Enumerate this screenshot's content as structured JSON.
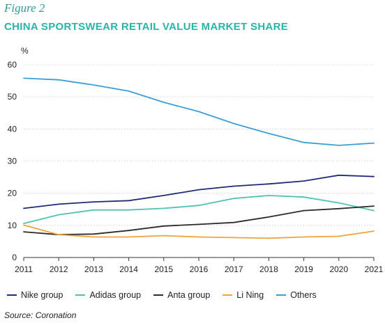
{
  "figure_label": "Figure 2",
  "title": "CHINA SPORTSWEAR RETAIL VALUE MARKET SHARE",
  "source": "Source: Coronation",
  "chart_data": {
    "type": "line",
    "title": "CHINA SPORTSWEAR RETAIL VALUE MARKET SHARE",
    "ylabel": "%",
    "xlabel": "",
    "ylim": [
      0,
      60
    ],
    "yticks": [
      0,
      10,
      20,
      30,
      40,
      50,
      60
    ],
    "x": [
      "2011",
      "2012",
      "2013",
      "2014",
      "2015",
      "2016",
      "2017",
      "2018",
      "2019",
      "2020",
      "2021"
    ],
    "grid": "horizontal",
    "legend_position": "bottom",
    "series": [
      {
        "name": "Nike group",
        "color": "#1f2a78",
        "values": [
          15.3,
          16.6,
          17.3,
          17.7,
          19.3,
          21.1,
          22.2,
          22.9,
          23.8,
          25.6,
          25.2
        ]
      },
      {
        "name": "Adidas group",
        "color": "#4ec3b1",
        "values": [
          10.6,
          13.3,
          14.8,
          14.8,
          15.3,
          16.2,
          18.4,
          19.3,
          18.8,
          17.0,
          14.6
        ]
      },
      {
        "name": "Anta group",
        "color": "#2b2b2b",
        "values": [
          8.0,
          7.1,
          7.3,
          8.4,
          9.8,
          10.3,
          10.9,
          12.6,
          14.6,
          15.2,
          16.0
        ]
      },
      {
        "name": "Li Ning",
        "color": "#f2a23a",
        "values": [
          10.1,
          7.1,
          6.4,
          6.4,
          6.8,
          6.4,
          6.2,
          6.0,
          6.4,
          6.6,
          8.2
        ]
      },
      {
        "name": "Others",
        "color": "#3a9fd6",
        "values": [
          55.8,
          55.3,
          53.7,
          51.8,
          48.3,
          45.4,
          41.7,
          38.6,
          35.8,
          34.9,
          35.6
        ]
      }
    ]
  }
}
